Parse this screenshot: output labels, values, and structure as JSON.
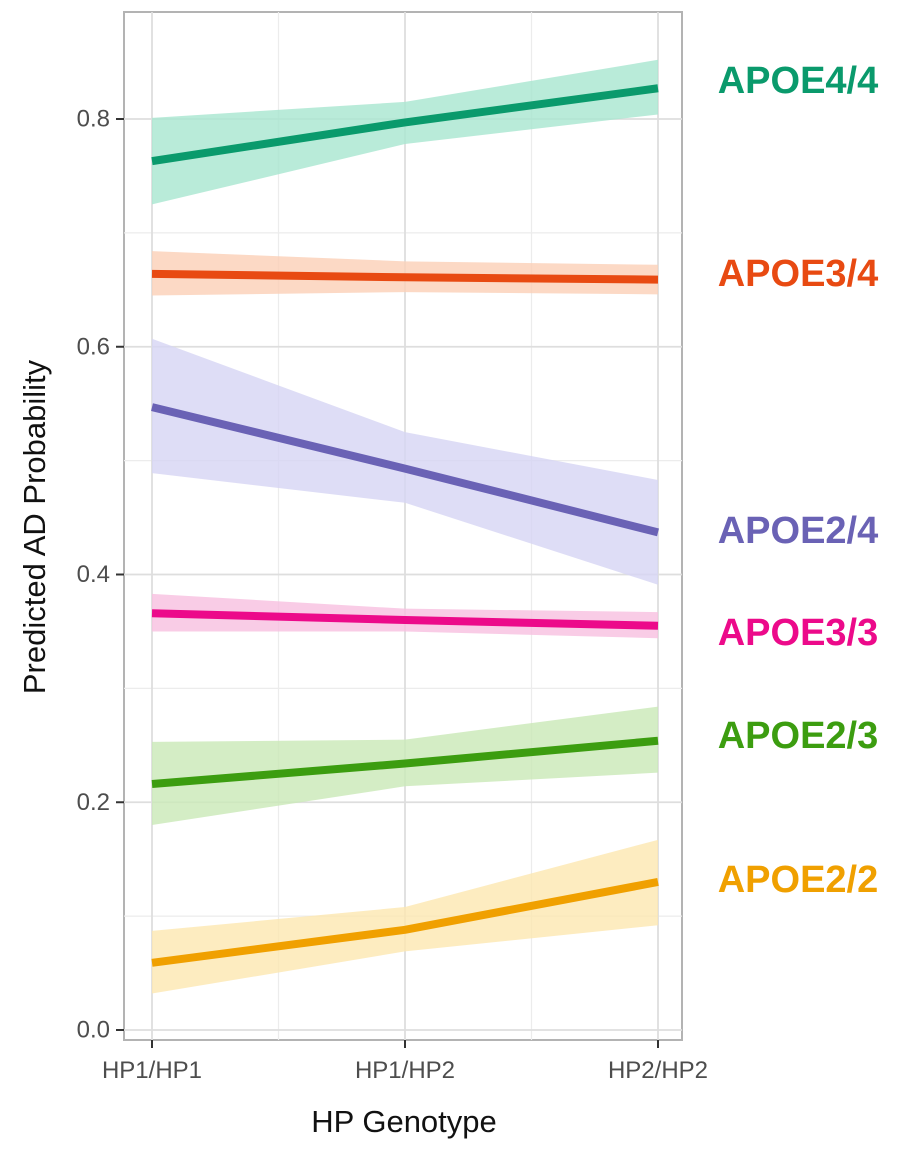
{
  "chart_data": {
    "type": "line",
    "title": "",
    "xlabel": "HP Genotype",
    "ylabel": "Predicted AD Probability",
    "categories": [
      "HP1/HP1",
      "HP1/HP2",
      "HP2/HP2"
    ],
    "ylim": [
      -0.002,
      0.88
    ],
    "yticks": [
      0.0,
      0.2,
      0.4,
      0.6,
      0.8
    ],
    "ytick_labels": [
      "0.0",
      "0.2",
      "0.4",
      "0.6",
      "0.8"
    ],
    "grid": true,
    "legend": "direct labels at right",
    "series": [
      {
        "name": "APOE4/4",
        "color": "#0a9a6c",
        "band_color": "#a8e6cf",
        "values": [
          0.763,
          0.797,
          0.827
        ],
        "lower": [
          0.725,
          0.778,
          0.804
        ],
        "upper": [
          0.801,
          0.815,
          0.852
        ]
      },
      {
        "name": "APOE3/4",
        "color": "#e84a12",
        "band_color": "#fbcfb6",
        "values": [
          0.664,
          0.661,
          0.659
        ],
        "lower": [
          0.645,
          0.648,
          0.646
        ],
        "upper": [
          0.684,
          0.675,
          0.672
        ]
      },
      {
        "name": "APOE2/4",
        "color": "#6a62b5",
        "band_color": "#d6d4f4",
        "values": [
          0.547,
          0.493,
          0.437
        ],
        "lower": [
          0.489,
          0.463,
          0.391
        ],
        "upper": [
          0.607,
          0.525,
          0.483
        ]
      },
      {
        "name": "APOE3/3",
        "color": "#ec0a8a",
        "band_color": "#f8bfe0",
        "values": [
          0.366,
          0.36,
          0.355
        ],
        "lower": [
          0.35,
          0.35,
          0.344
        ],
        "upper": [
          0.383,
          0.37,
          0.367
        ]
      },
      {
        "name": "APOE2/3",
        "color": "#3c9d10",
        "band_color": "#c9e8b7",
        "values": [
          0.216,
          0.234,
          0.254
        ],
        "lower": [
          0.18,
          0.214,
          0.226
        ],
        "upper": [
          0.253,
          0.255,
          0.284
        ]
      },
      {
        "name": "APOE2/2",
        "color": "#f0a000",
        "band_color": "#fde7b0",
        "values": [
          0.059,
          0.088,
          0.13
        ],
        "lower": [
          0.032,
          0.069,
          0.092
        ],
        "upper": [
          0.087,
          0.108,
          0.167
        ]
      }
    ]
  }
}
